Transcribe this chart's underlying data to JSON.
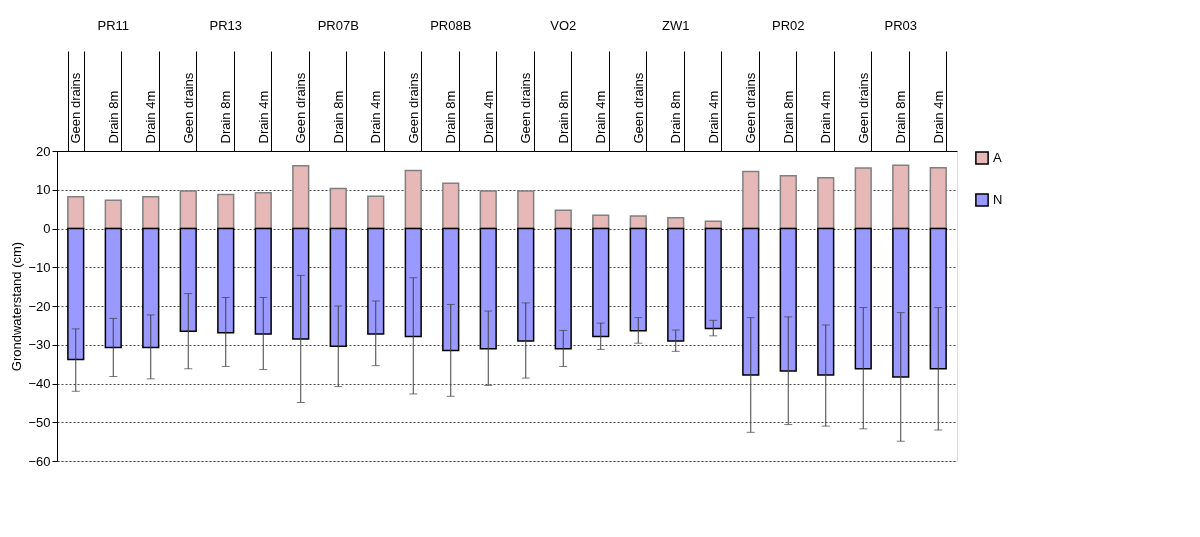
{
  "chart_data": {
    "type": "bar",
    "stacked": true,
    "ylabel": "Grondwaterstand (cm)",
    "categories": [
      "Geen drains",
      "Drain 8m",
      "Drain 4m",
      "Geen drains",
      "Drain 8m",
      "Drain 4m",
      "Geen drains",
      "Drain 8m",
      "Drain 4m",
      "Geen drains",
      "Drain 8m",
      "Drain 4m",
      "Geen drains",
      "Drain 8m",
      "Drain 4m",
      "Geen drains",
      "Drain 8m",
      "Drain 4m",
      "Geen drains",
      "Drain 8m",
      "Drain 4m",
      "Geen drains",
      "Drain 8m",
      "Drain 4m"
    ],
    "annotations": [
      "PR11",
      "PR13",
      "PR07B",
      "PR08B",
      "VO2",
      "ZW1",
      "PR02",
      "PR03"
    ],
    "series": [
      {
        "name": "A",
        "color": "#e6b8b7",
        "values": [
          8.2,
          7.3,
          8.2,
          9.7,
          8.8,
          9.2,
          16.2,
          10.3,
          8.3,
          15.0,
          11.7,
          9.7,
          9.7,
          4.7,
          3.4,
          3.2,
          2.8,
          1.9,
          14.7,
          13.6,
          13.1,
          15.6,
          16.3,
          15.7
        ]
      },
      {
        "name": "N",
        "color": "#9999ff",
        "values": [
          -33.8,
          -30.7,
          -30.7,
          -26.5,
          -26.9,
          -27.2,
          -28.5,
          -30.4,
          -27.2,
          -27.9,
          -31.5,
          -31.0,
          -29.0,
          -31.0,
          -27.9,
          -26.4,
          -29.0,
          -25.8,
          -37.8,
          -36.8,
          -37.8,
          -36.2,
          -38.3,
          -36.2
        ],
        "errors": [
          [
            -42.0,
            -25.9
          ],
          [
            -38.2,
            -23.2
          ],
          [
            -38.8,
            -22.3
          ],
          [
            -36.2,
            -16.8
          ],
          [
            -35.6,
            -17.8
          ],
          [
            -36.4,
            -17.8
          ],
          [
            -44.9,
            -12.1
          ],
          [
            -40.8,
            -20.0
          ],
          [
            -35.4,
            -18.7
          ],
          [
            -42.7,
            -12.7
          ],
          [
            -43.3,
            -19.6
          ],
          [
            -40.5,
            -21.3
          ],
          [
            -38.6,
            -19.2
          ],
          [
            -35.6,
            -26.3
          ],
          [
            -31.2,
            -24.4
          ],
          [
            -29.6,
            -23.0
          ],
          [
            -31.7,
            -26.2
          ],
          [
            -27.7,
            -23.7
          ],
          [
            -52.6,
            -23.0
          ],
          [
            -50.6,
            -22.8
          ],
          [
            -51.0,
            -24.9
          ],
          [
            -51.7,
            -20.4
          ],
          [
            -54.9,
            -21.7
          ],
          [
            -52.0,
            -20.4
          ]
        ]
      }
    ],
    "ylim": [
      -60,
      20
    ],
    "yticks": [
      -60,
      -50,
      -40,
      -30,
      -20,
      -10,
      0,
      10,
      20
    ],
    "grid": "y",
    "legend": "right"
  }
}
